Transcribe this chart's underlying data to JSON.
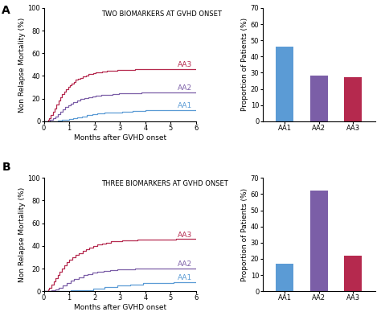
{
  "panel_A_title": "TWO BIOMARKERS AT GVHD ONSET",
  "panel_B_title": "THREE BIOMARKERS AT GVHD ONSET",
  "xlabel_survival": "Months after GVHD onset",
  "ylabel_survival": "Non Relapse Mortality (%)",
  "ylabel_bar": "Proportion of Patients (%)",
  "survival_xlim": [
    0,
    6
  ],
  "survival_ylim": [
    0,
    100
  ],
  "bar_ylim": [
    0,
    70
  ],
  "bar_yticks": [
    0,
    10,
    20,
    30,
    40,
    50,
    60,
    70
  ],
  "survival_yticks": [
    0,
    20,
    40,
    60,
    80,
    100
  ],
  "survival_xticks": [
    0,
    1,
    2,
    3,
    4,
    5,
    6
  ],
  "bar_categories": [
    "AA1",
    "AA2",
    "AA3"
  ],
  "color_AA1": "#5b9bd5",
  "color_AA2": "#7b5ea7",
  "color_AA3": "#b5294e",
  "panel_A_bar_values": [
    46,
    28,
    27
  ],
  "panel_B_bar_values": [
    17,
    62,
    22
  ],
  "panel_A_AA3_x": [
    0.0,
    0.18,
    0.22,
    0.28,
    0.35,
    0.42,
    0.5,
    0.58,
    0.65,
    0.72,
    0.8,
    0.88,
    0.95,
    1.02,
    1.1,
    1.18,
    1.25,
    1.35,
    1.45,
    1.55,
    1.65,
    1.75,
    1.85,
    1.95,
    2.05,
    2.15,
    2.3,
    2.5,
    2.7,
    2.9,
    3.1,
    3.3,
    3.6,
    3.9,
    4.2,
    4.6,
    5.0,
    5.5,
    6.0
  ],
  "panel_A_AA3_y": [
    0.0,
    1.5,
    3.0,
    5.5,
    8.5,
    11.5,
    15.0,
    18.5,
    21.5,
    24.0,
    26.5,
    28.5,
    30.5,
    32.0,
    33.5,
    35.0,
    36.5,
    37.5,
    38.5,
    39.5,
    40.5,
    41.5,
    42.0,
    42.5,
    43.0,
    43.5,
    44.0,
    44.5,
    44.8,
    45.0,
    45.2,
    45.5,
    45.7,
    45.8,
    46.0,
    46.0,
    46.0,
    46.0,
    46.0
  ],
  "panel_A_AA2_x": [
    0.0,
    0.25,
    0.35,
    0.45,
    0.55,
    0.65,
    0.75,
    0.85,
    0.95,
    1.05,
    1.15,
    1.3,
    1.45,
    1.6,
    1.75,
    1.9,
    2.05,
    2.25,
    2.45,
    2.7,
    2.95,
    3.25,
    3.55,
    3.85,
    4.2,
    4.6,
    5.0,
    5.5,
    6.0
  ],
  "panel_A_AA2_y": [
    0.0,
    1.0,
    2.5,
    4.5,
    6.5,
    8.5,
    10.5,
    12.5,
    14.0,
    15.5,
    17.0,
    18.5,
    19.5,
    20.5,
    21.3,
    22.0,
    22.5,
    23.0,
    23.5,
    24.0,
    24.5,
    24.8,
    25.0,
    25.2,
    25.3,
    25.4,
    25.5,
    25.5,
    25.5
  ],
  "panel_A_AA1_x": [
    0.0,
    0.4,
    0.55,
    0.7,
    0.85,
    1.0,
    1.15,
    1.3,
    1.5,
    1.7,
    1.9,
    2.1,
    2.4,
    2.7,
    3.1,
    3.5,
    4.0,
    4.5,
    5.0,
    5.5,
    6.0
  ],
  "panel_A_AA1_y": [
    0.0,
    0.0,
    0.5,
    1.0,
    1.5,
    2.0,
    2.8,
    3.5,
    4.5,
    5.5,
    6.2,
    6.8,
    7.5,
    8.0,
    8.5,
    9.0,
    9.5,
    9.8,
    10.0,
    10.0,
    10.0
  ],
  "panel_B_AA3_x": [
    0.0,
    0.18,
    0.22,
    0.3,
    0.38,
    0.46,
    0.54,
    0.62,
    0.7,
    0.8,
    0.9,
    1.0,
    1.12,
    1.25,
    1.38,
    1.52,
    1.66,
    1.8,
    1.95,
    2.1,
    2.28,
    2.46,
    2.65,
    2.85,
    3.1,
    3.4,
    3.7,
    4.0,
    4.4,
    4.8,
    5.2,
    5.6,
    6.0
  ],
  "panel_B_AA3_y": [
    0.0,
    1.5,
    3.0,
    5.5,
    8.5,
    11.5,
    14.5,
    17.5,
    20.0,
    23.0,
    25.5,
    28.0,
    30.0,
    32.0,
    33.8,
    35.5,
    37.0,
    38.5,
    39.8,
    41.0,
    42.0,
    43.0,
    43.8,
    44.3,
    44.7,
    45.0,
    45.3,
    45.5,
    45.7,
    45.8,
    46.0,
    46.0,
    46.0
  ],
  "panel_B_AA2_x": [
    0.0,
    0.3,
    0.45,
    0.6,
    0.75,
    0.9,
    1.05,
    1.2,
    1.38,
    1.56,
    1.74,
    1.92,
    2.1,
    2.35,
    2.6,
    2.9,
    3.2,
    3.6,
    4.0,
    4.5,
    5.0,
    5.5,
    6.0
  ],
  "panel_B_AA2_y": [
    0.0,
    0.5,
    1.5,
    3.0,
    5.0,
    7.0,
    9.0,
    11.0,
    12.5,
    14.0,
    15.2,
    16.3,
    17.2,
    18.0,
    18.7,
    19.2,
    19.6,
    19.9,
    20.0,
    20.0,
    20.0,
    20.0,
    20.0
  ],
  "panel_B_AA1_x": [
    0.0,
    0.55,
    0.8,
    1.05,
    1.5,
    1.95,
    2.4,
    2.9,
    3.4,
    3.9,
    4.5,
    5.1,
    5.6,
    6.0
  ],
  "panel_B_AA1_y": [
    0.0,
    0.0,
    0.0,
    0.5,
    1.0,
    2.0,
    3.5,
    5.0,
    6.0,
    7.0,
    7.5,
    8.0,
    8.0,
    8.0
  ],
  "label_fontsize": 6.5,
  "title_fontsize": 6.0,
  "tick_fontsize": 6,
  "panel_label_fontsize": 10,
  "bar_width": 0.52,
  "aa_label_fontsize": 6.5
}
